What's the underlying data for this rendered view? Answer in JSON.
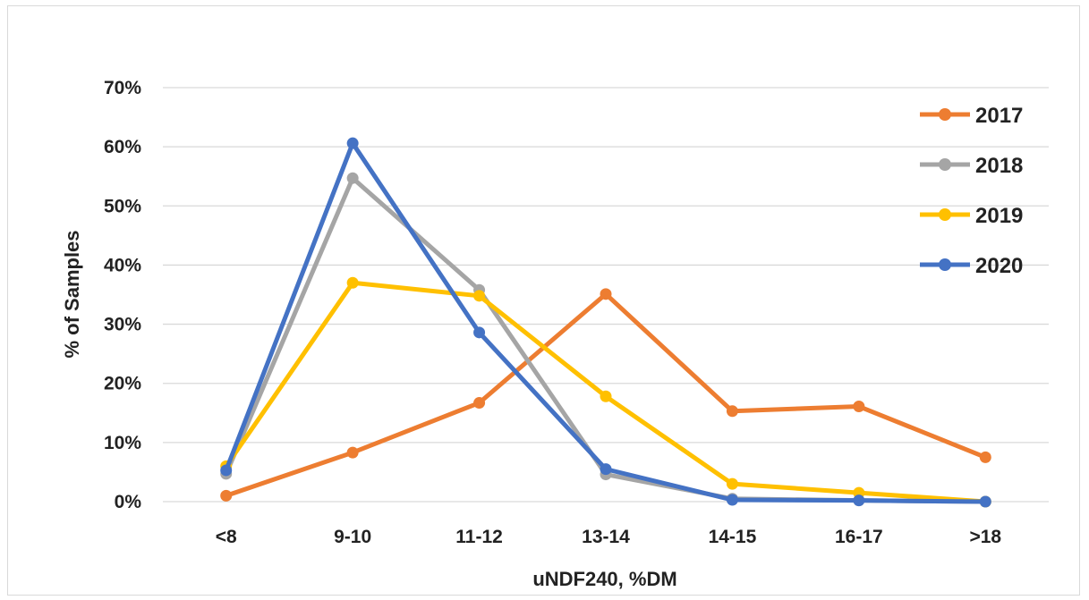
{
  "chart_data": {
    "type": "line",
    "title": "",
    "xlabel": "uNDF240, %DM",
    "ylabel": "% of Samples",
    "categories": [
      "<8",
      "9-10",
      "11-12",
      "13-14",
      "14-15",
      "16-17",
      ">18"
    ],
    "ylim": [
      0,
      70
    ],
    "yticks": [
      0,
      10,
      20,
      30,
      40,
      50,
      60,
      70
    ],
    "ytick_labels": [
      "0%",
      "10%",
      "20%",
      "30%",
      "40%",
      "50%",
      "60%",
      "70%"
    ],
    "grid": true,
    "legend_position": "right",
    "series": [
      {
        "name": "2017",
        "color": "#ED7D31",
        "values": [
          1,
          8.3,
          16.7,
          35.1,
          15.3,
          16.1,
          7.5
        ]
      },
      {
        "name": "2018",
        "color": "#A5A5A5",
        "values": [
          4.7,
          54.7,
          35.8,
          4.6,
          0.5,
          0.2,
          0
        ]
      },
      {
        "name": "2019",
        "color": "#FFC000",
        "values": [
          6,
          37,
          34.8,
          17.8,
          3,
          1.5,
          0
        ]
      },
      {
        "name": "2020",
        "color": "#4472C4",
        "values": [
          5.3,
          60.6,
          28.6,
          5.5,
          0.3,
          0.2,
          0
        ]
      }
    ]
  }
}
